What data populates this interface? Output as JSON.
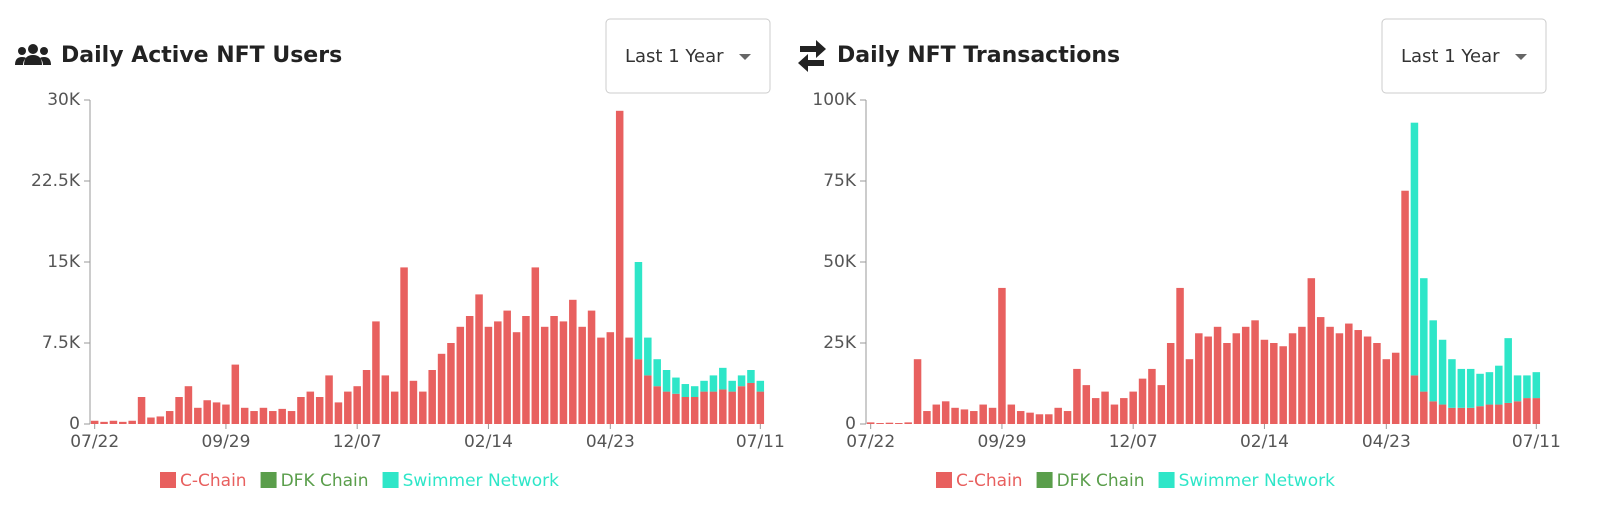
{
  "chart_data": [
    {
      "type": "stacked-bar",
      "title": "Daily Active NFT Users",
      "dropdown": "Last 1 Year",
      "categories": [
        "07/22",
        null,
        null,
        null,
        null,
        null,
        null,
        null,
        null,
        null,
        null,
        null,
        null,
        null,
        "09/29",
        null,
        null,
        null,
        null,
        null,
        null,
        null,
        null,
        null,
        null,
        null,
        null,
        null,
        "12/07",
        null,
        null,
        null,
        null,
        null,
        null,
        null,
        null,
        null,
        null,
        null,
        null,
        null,
        "02/14",
        null,
        null,
        null,
        null,
        null,
        null,
        null,
        null,
        null,
        null,
        null,
        null,
        "04/23",
        null,
        null,
        null,
        null,
        null,
        null,
        null,
        null,
        null,
        null,
        null,
        null,
        null,
        null,
        null,
        "07/11"
      ],
      "ylim": [
        0,
        30000
      ],
      "yticks": [
        0,
        {
          "value": 7500,
          "label": "7.5K"
        },
        {
          "value": 15000,
          "label": "15K"
        },
        {
          "value": 22500,
          "label": "22.5K"
        },
        {
          "value": 30000,
          "label": "30K"
        }
      ],
      "series": [
        {
          "name": "C-Chain",
          "color": "#e8605f",
          "values": [
            300,
            200,
            300,
            200,
            300,
            2500,
            600,
            700,
            1200,
            2500,
            3500,
            1500,
            2200,
            2000,
            1800,
            5500,
            1500,
            1200,
            1500,
            1200,
            1400,
            1200,
            2500,
            3000,
            2500,
            4500,
            2000,
            3000,
            3500,
            5000,
            9500,
            4500,
            3000,
            14500,
            4000,
            3000,
            5000,
            6500,
            7500,
            9000,
            10000,
            12000,
            9000,
            9500,
            10500,
            8500,
            10000,
            14500,
            9000,
            10000,
            9500,
            11500,
            9000,
            10500,
            8000,
            8500,
            29000,
            8000,
            6000,
            4500,
            3500,
            3000,
            2800,
            2500,
            2500,
            3000,
            3000,
            3200,
            3000,
            3500,
            3800,
            3000
          ]
        },
        {
          "name": "DFK Chain",
          "color": "#5a9e4b",
          "values": [
            0,
            0,
            0,
            0,
            0,
            0,
            0,
            0,
            0,
            0,
            0,
            0,
            0,
            0,
            0,
            0,
            0,
            0,
            0,
            0,
            0,
            0,
            0,
            0,
            0,
            0,
            0,
            0,
            0,
            0,
            0,
            0,
            0,
            0,
            0,
            0,
            0,
            0,
            0,
            0,
            0,
            0,
            0,
            0,
            0,
            0,
            0,
            0,
            0,
            0,
            0,
            0,
            0,
            0,
            0,
            0,
            0,
            0,
            0,
            0,
            0,
            0,
            0,
            0,
            0,
            0,
            0,
            0,
            0,
            0,
            0,
            0
          ]
        },
        {
          "name": "Swimmer Network",
          "color": "#2ee6c8",
          "values": [
            0,
            0,
            0,
            0,
            0,
            0,
            0,
            0,
            0,
            0,
            0,
            0,
            0,
            0,
            0,
            0,
            0,
            0,
            0,
            0,
            0,
            0,
            0,
            0,
            0,
            0,
            0,
            0,
            0,
            0,
            0,
            0,
            0,
            0,
            0,
            0,
            0,
            0,
            0,
            0,
            0,
            0,
            0,
            0,
            0,
            0,
            0,
            0,
            0,
            0,
            0,
            0,
            0,
            0,
            0,
            0,
            0,
            0,
            9000,
            3500,
            2500,
            2000,
            1500,
            1200,
            1000,
            1000,
            1500,
            2000,
            1000,
            1000,
            1200,
            1000
          ]
        }
      ]
    },
    {
      "type": "stacked-bar",
      "title": "Daily NFT Transactions",
      "dropdown": "Last 1 Year",
      "categories": [
        "07/22",
        null,
        null,
        null,
        null,
        null,
        null,
        null,
        null,
        null,
        null,
        null,
        null,
        null,
        "09/29",
        null,
        null,
        null,
        null,
        null,
        null,
        null,
        null,
        null,
        null,
        null,
        null,
        null,
        "12/07",
        null,
        null,
        null,
        null,
        null,
        null,
        null,
        null,
        null,
        null,
        null,
        null,
        null,
        "02/14",
        null,
        null,
        null,
        null,
        null,
        null,
        null,
        null,
        null,
        null,
        null,
        null,
        "04/23",
        null,
        null,
        null,
        null,
        null,
        null,
        null,
        null,
        null,
        null,
        null,
        null,
        null,
        null,
        null,
        "07/11"
      ],
      "ylim": [
        0,
        100000
      ],
      "yticks": [
        0,
        {
          "value": 25000,
          "label": "25K"
        },
        {
          "value": 50000,
          "label": "50K"
        },
        {
          "value": 75000,
          "label": "75K"
        },
        {
          "value": 100000,
          "label": "100K"
        }
      ],
      "series": [
        {
          "name": "C-Chain",
          "color": "#e8605f",
          "values": [
            500,
            300,
            400,
            300,
            500,
            20000,
            4000,
            6000,
            7000,
            5000,
            4500,
            4000,
            6000,
            5000,
            42000,
            6000,
            4000,
            3500,
            3000,
            3000,
            5000,
            4000,
            17000,
            12000,
            8000,
            10000,
            6000,
            8000,
            10000,
            14000,
            17000,
            12000,
            25000,
            42000,
            20000,
            28000,
            27000,
            30000,
            25000,
            28000,
            30000,
            32000,
            26000,
            25000,
            24000,
            28000,
            30000,
            45000,
            33000,
            30000,
            28000,
            31000,
            29000,
            27000,
            25000,
            20000,
            22000,
            72000,
            15000,
            10000,
            7000,
            6000,
            5000,
            5000,
            5000,
            5500,
            6000,
            6000,
            6500,
            7000,
            8000,
            8000
          ]
        },
        {
          "name": "DFK Chain",
          "color": "#5a9e4b",
          "values": [
            0,
            0,
            0,
            0,
            0,
            0,
            0,
            0,
            0,
            0,
            0,
            0,
            0,
            0,
            0,
            0,
            0,
            0,
            0,
            0,
            0,
            0,
            0,
            0,
            0,
            0,
            0,
            0,
            0,
            0,
            0,
            0,
            0,
            0,
            0,
            0,
            0,
            0,
            0,
            0,
            0,
            0,
            0,
            0,
            0,
            0,
            0,
            0,
            0,
            0,
            0,
            0,
            0,
            0,
            0,
            0,
            0,
            0,
            0,
            0,
            0,
            0,
            0,
            0,
            0,
            0,
            0,
            0,
            0,
            0,
            0,
            0
          ]
        },
        {
          "name": "Swimmer Network",
          "color": "#2ee6c8",
          "values": [
            0,
            0,
            0,
            0,
            0,
            0,
            0,
            0,
            0,
            0,
            0,
            0,
            0,
            0,
            0,
            0,
            0,
            0,
            0,
            0,
            0,
            0,
            0,
            0,
            0,
            0,
            0,
            0,
            0,
            0,
            0,
            0,
            0,
            0,
            0,
            0,
            0,
            0,
            0,
            0,
            0,
            0,
            0,
            0,
            0,
            0,
            0,
            0,
            0,
            0,
            0,
            0,
            0,
            0,
            0,
            0,
            0,
            0,
            78000,
            35000,
            25000,
            20000,
            15000,
            12000,
            12000,
            10000,
            10000,
            12000,
            20000,
            8000,
            7000,
            8000
          ]
        }
      ]
    }
  ]
}
